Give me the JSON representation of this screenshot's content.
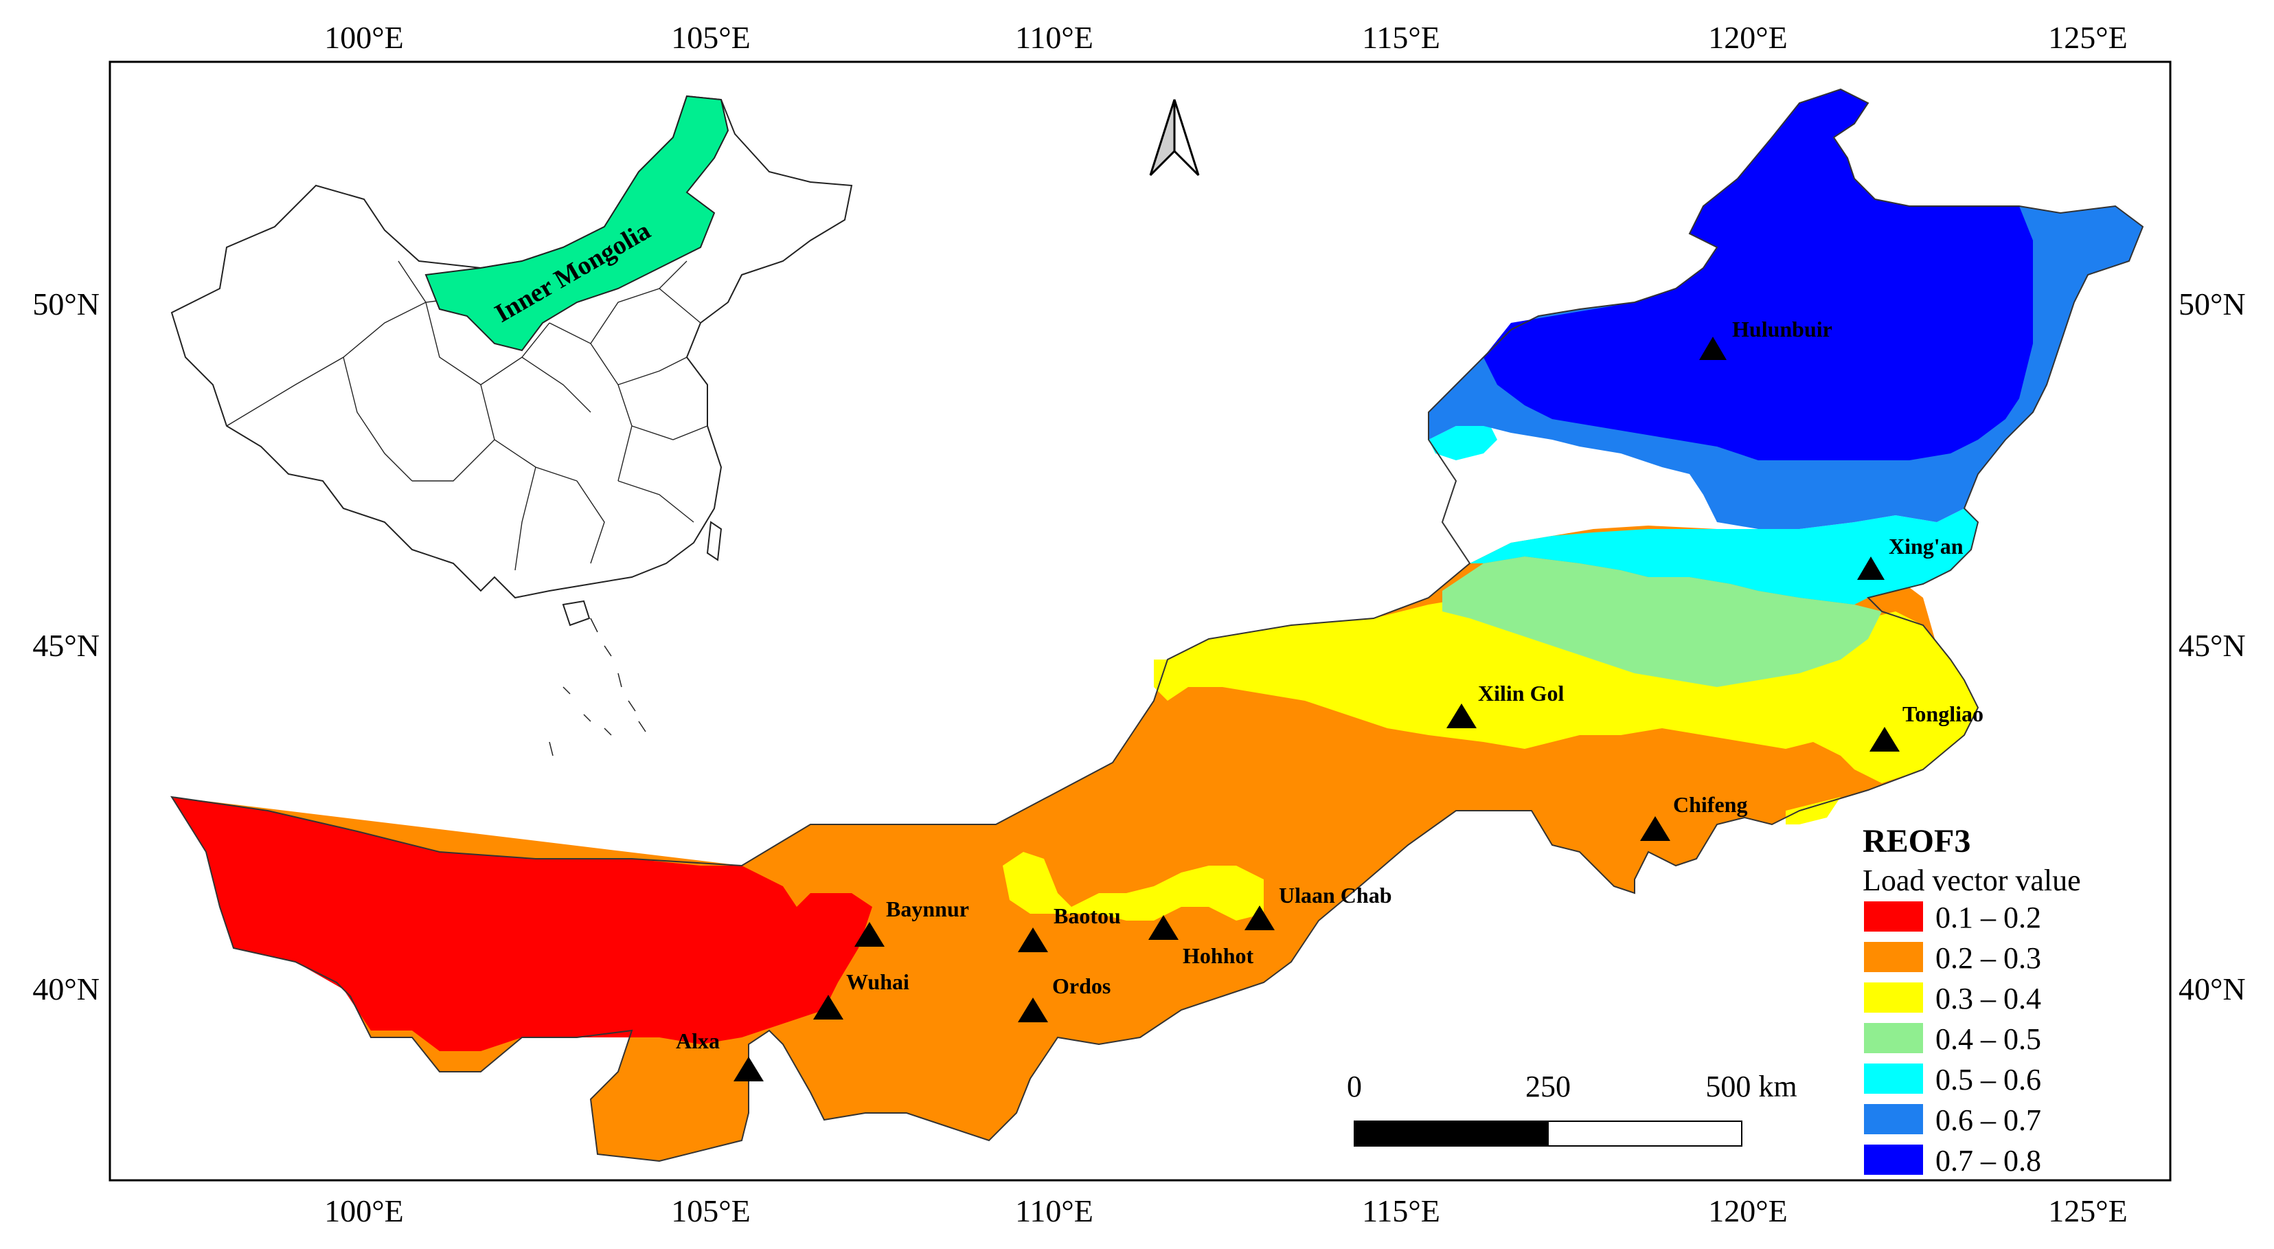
{
  "map": {
    "title": "REOF3",
    "subtitle": "Load vector value",
    "longitude_ticks": [
      "100°E",
      "105°E",
      "110°E",
      "115°E",
      "120°E",
      "125°E"
    ],
    "latitude_ticks": [
      "50°N",
      "45°N",
      "40°N"
    ],
    "legend": [
      {
        "label": "0.1 – 0.2",
        "color": "#ff0000"
      },
      {
        "label": "0.2 – 0.3",
        "color": "#ff8c00"
      },
      {
        "label": "0.3 – 0.4",
        "color": "#ffff00"
      },
      {
        "label": "0.4 – 0.5",
        "color": "#90ee90"
      },
      {
        "label": "0.5 – 0.6",
        "color": "#00ffff"
      },
      {
        "label": "0.6 – 0.7",
        "color": "#1e7ff0"
      },
      {
        "label": "0.7 – 0.8",
        "color": "#0000ff"
      }
    ],
    "cities": [
      {
        "name": "Hulunbuir"
      },
      {
        "name": "Xing'an"
      },
      {
        "name": "Xilin Gol"
      },
      {
        "name": "Tongliao"
      },
      {
        "name": "Chifeng"
      },
      {
        "name": "Ulaan Chab"
      },
      {
        "name": "Hohhot"
      },
      {
        "name": "Baotou"
      },
      {
        "name": "Baynnur"
      },
      {
        "name": "Ordos"
      },
      {
        "name": "Wuhai"
      },
      {
        "name": "Alxa"
      }
    ],
    "scale_bar": {
      "labels": [
        "0",
        "250",
        "500 km"
      ]
    },
    "inset": {
      "label": "Inner Mongolia",
      "highlight_color": "#00ee90"
    },
    "north_arrow": "north-arrow-icon"
  }
}
